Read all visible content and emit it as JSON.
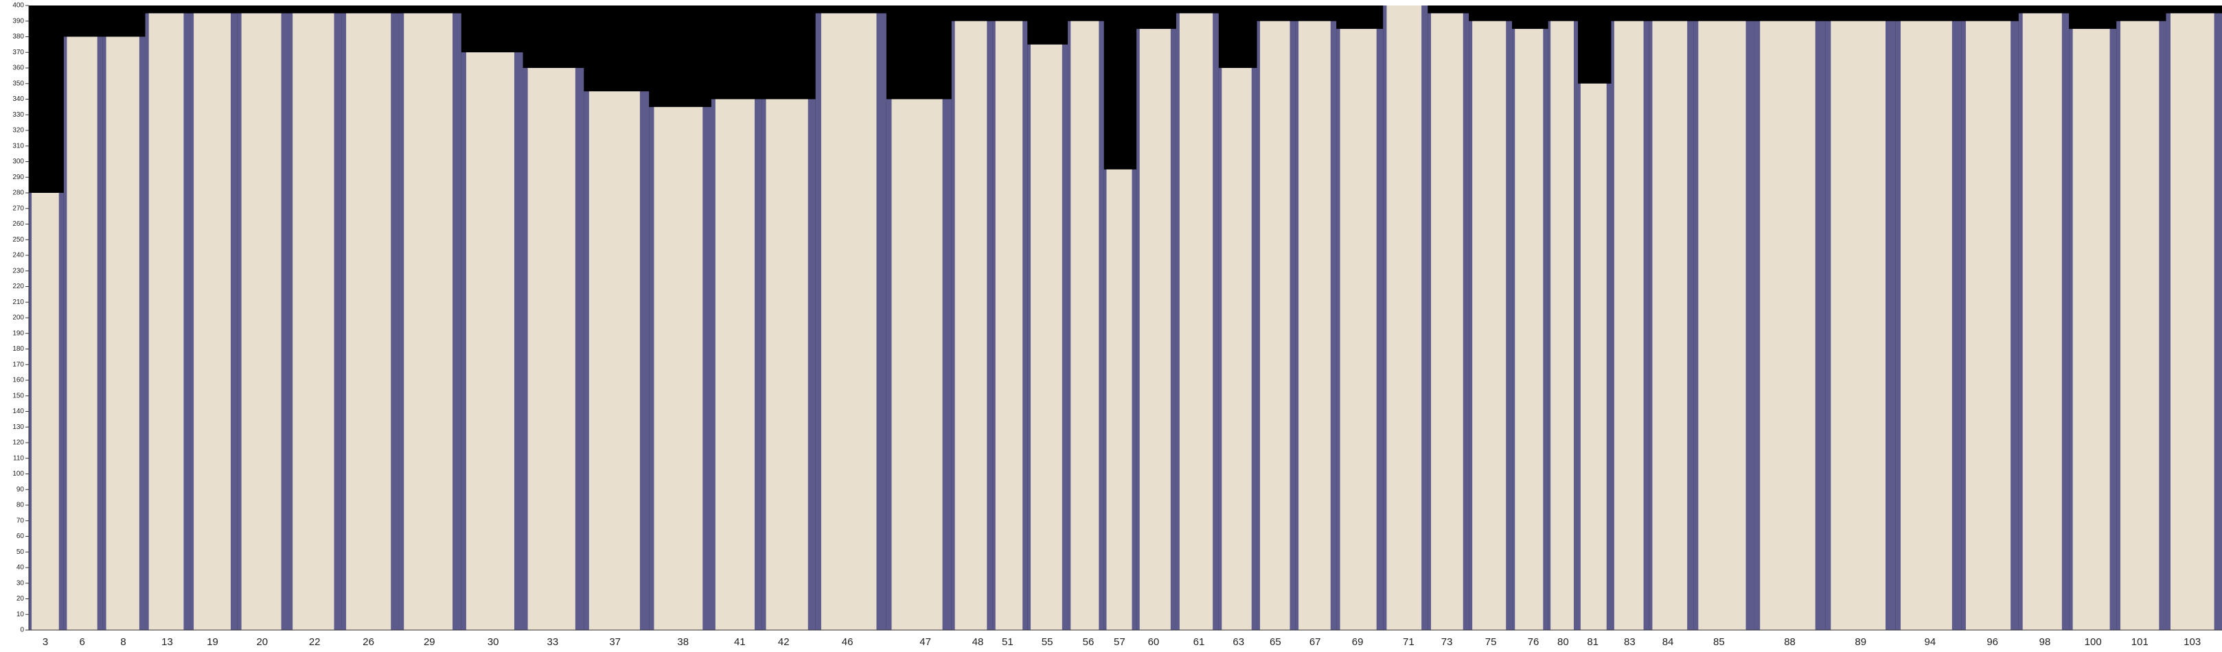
{
  "chart_data": {
    "type": "bar",
    "categories": [
      "3",
      "6",
      "8",
      "13",
      "19",
      "20",
      "22",
      "26",
      "29",
      "30",
      "33",
      "37",
      "38",
      "41",
      "42",
      "46",
      "47",
      "48",
      "51",
      "55",
      "56",
      "57",
      "60",
      "61",
      "63",
      "65",
      "67",
      "69",
      "71",
      "73",
      "75",
      "76",
      "80",
      "81",
      "83",
      "84",
      "85",
      "88",
      "89",
      "94",
      "96",
      "98",
      "100",
      "101",
      "103"
    ],
    "values": [
      280,
      380,
      380,
      395,
      395,
      395,
      395,
      395,
      395,
      370,
      360,
      345,
      335,
      340,
      340,
      395,
      340,
      390,
      390,
      375,
      390,
      295,
      385,
      395,
      360,
      390,
      390,
      385,
      400,
      395,
      390,
      385,
      390,
      350,
      390,
      390,
      390,
      390,
      390,
      390,
      390,
      395,
      385,
      390,
      395
    ],
    "color": "#e9dfcf",
    "ylim": [
      0,
      400
    ],
    "yticks": [
      0,
      10,
      20,
      30,
      40,
      50,
      60,
      70,
      80,
      90,
      100,
      110,
      120,
      130,
      140,
      150,
      160,
      170,
      180,
      190,
      200,
      210,
      220,
      230,
      240,
      250,
      260,
      270,
      280,
      290,
      300,
      310,
      320,
      330,
      340,
      350,
      360,
      370,
      380,
      390,
      400
    ]
  }
}
